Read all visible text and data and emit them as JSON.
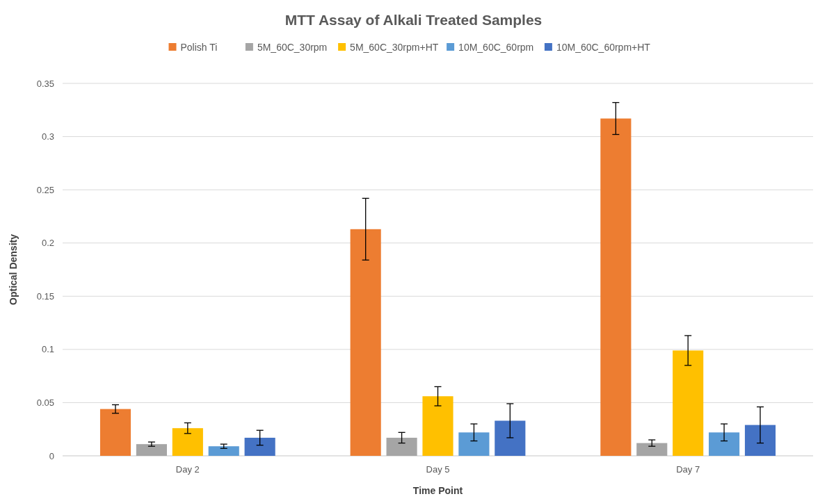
{
  "chart_data": {
    "type": "bar",
    "title": "MTT Assay of Alkali Treated Samples",
    "xlabel": "Time Point",
    "ylabel": "Optical Density",
    "categories": [
      "Day 2",
      "Day 5",
      "Day 7"
    ],
    "series": [
      {
        "name": "Polish Ti",
        "color": "#ed7d31",
        "values": [
          0.044,
          0.213,
          0.317
        ],
        "errors": [
          0.004,
          0.029,
          0.015
        ]
      },
      {
        "name": "5M_60C_30rpm",
        "color": "#a5a5a5",
        "values": [
          0.011,
          0.017,
          0.012
        ],
        "errors": [
          0.002,
          0.005,
          0.003
        ]
      },
      {
        "name": "5M_60C_30rpm+HT",
        "color": "#ffc000",
        "values": [
          0.026,
          0.056,
          0.099
        ],
        "errors": [
          0.005,
          0.009,
          0.014
        ]
      },
      {
        "name": "10M_60C_60rpm",
        "color": "#5b9bd5",
        "values": [
          0.009,
          0.022,
          0.022
        ],
        "errors": [
          0.002,
          0.008,
          0.008
        ]
      },
      {
        "name": "10M_60C_60rpm+HT",
        "color": "#4472c4",
        "values": [
          0.017,
          0.033,
          0.029
        ],
        "errors": [
          0.007,
          0.016,
          0.017
        ]
      }
    ],
    "ylim": [
      0,
      0.35
    ],
    "yticks": [
      0,
      0.05,
      0.1,
      0.15,
      0.2,
      0.25,
      0.3,
      0.35
    ],
    "grid": "y",
    "legend": "top"
  }
}
